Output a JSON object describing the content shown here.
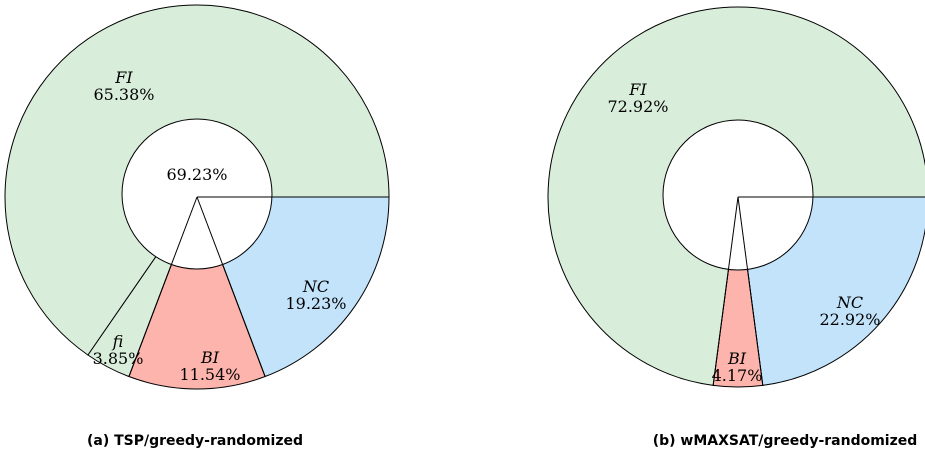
{
  "colors": {
    "FI": "#d9eeda",
    "fi": "#d9eeda",
    "BI": "#fcb4ac",
    "NC": "#c3e3fb",
    "hole": "#ffffff",
    "stroke": "#000000"
  },
  "chart_data": [
    {
      "type": "pie",
      "caption": "(a) TSP/greedy-randomized",
      "center_label": "69.23%",
      "slices": [
        {
          "name": "NC",
          "value": 19.23,
          "label": "NC",
          "pct": "19.23%"
        },
        {
          "name": "BI",
          "value": 11.54,
          "label": "BI",
          "pct": "11.54%"
        },
        {
          "name": "fi",
          "value": 3.85,
          "label": "fi",
          "pct": "3.85%"
        },
        {
          "name": "FI",
          "value": 65.38,
          "label": "FI",
          "pct": "65.38%"
        }
      ]
    },
    {
      "type": "pie",
      "caption": "(b) wMAXSAT/greedy-randomized",
      "center_label": "",
      "slices": [
        {
          "name": "NC",
          "value": 22.92,
          "label": "NC",
          "pct": "22.92%"
        },
        {
          "name": "BI",
          "value": 4.17,
          "label": "BI",
          "pct": "4.17%"
        },
        {
          "name": "FI",
          "value": 72.92,
          "label": "FI",
          "pct": "72.92%"
        }
      ]
    }
  ]
}
